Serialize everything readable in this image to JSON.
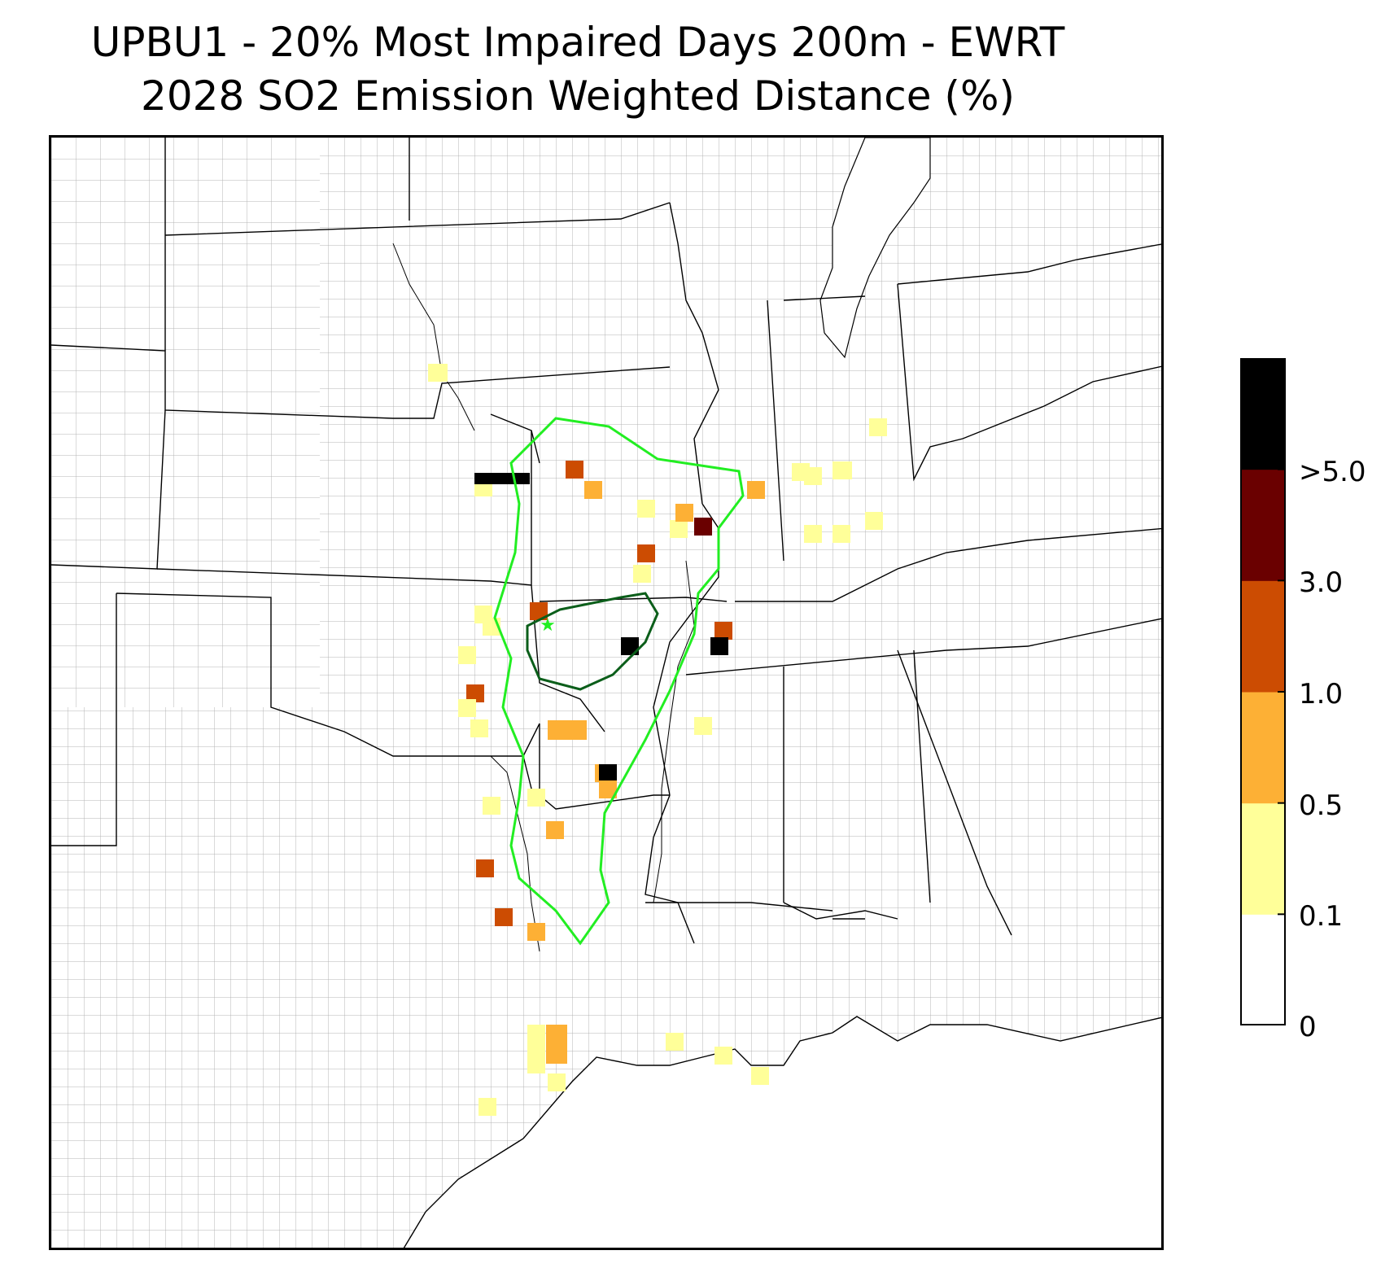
{
  "title": {
    "line1": "UPBU1 - 20% Most Impaired Days 200m - EWRT",
    "line2": "2028 SO2 Emission Weighted Distance (%)"
  },
  "map": {
    "region": "Central and South-Central United States with county boundaries",
    "class_I_area_marker": "green-star",
    "contours": [
      {
        "name": "outer-contour",
        "color": "#22ee22"
      },
      {
        "name": "inner-contour",
        "color": "#0b5e1a"
      }
    ]
  },
  "colorbar": {
    "bins": [
      {
        "range": "0-0.1",
        "color": "#ffffff"
      },
      {
        "range": "0.1-0.5",
        "color": "#ffff99"
      },
      {
        "range": "0.5-1.0",
        "color": "#fdb035"
      },
      {
        "range": "1.0-3.0",
        "color": "#cc4c02"
      },
      {
        "range": "3.0-5.0",
        "color": "#6a0000"
      },
      {
        "range": ">5.0",
        "color": "#000000"
      }
    ],
    "tick_labels": [
      "0",
      "0.1",
      "0.5",
      "1.0",
      "3.0",
      ">5.0"
    ]
  },
  "cells": [
    {
      "name": "cell-se-nebraska",
      "bin": 1
    },
    {
      "name": "cell-nw-missouri-1",
      "bin": 3
    },
    {
      "name": "cell-nw-missouri-2",
      "bin": 2
    },
    {
      "name": "cell-ne-kansas",
      "bin": 1
    },
    {
      "name": "cell-ne-missouri",
      "bin": 5
    },
    {
      "name": "cell-central-illinois-1",
      "bin": 1
    },
    {
      "name": "cell-central-illinois-2",
      "bin": 3
    },
    {
      "name": "cell-central-illinois-3",
      "bin": 4
    },
    {
      "name": "cell-central-illinois-4",
      "bin": 1
    },
    {
      "name": "cell-east-illinois",
      "bin": 2
    },
    {
      "name": "cell-indiana-west",
      "bin": 2
    },
    {
      "name": "cell-indiana-1",
      "bin": 1
    },
    {
      "name": "cell-indiana-2",
      "bin": 1
    },
    {
      "name": "cell-indiana-3",
      "bin": 1
    },
    {
      "name": "cell-indiana-4",
      "bin": 1
    },
    {
      "name": "cell-ohio-river-1",
      "bin": 1
    },
    {
      "name": "cell-ohio-river-2",
      "bin": 1
    },
    {
      "name": "cell-ohio-river-3",
      "bin": 1
    },
    {
      "name": "cell-se-illinois",
      "bin": 1
    },
    {
      "name": "cell-se-missouri",
      "bin": 3
    },
    {
      "name": "cell-central-missouri",
      "bin": 3
    },
    {
      "name": "cell-kansas-1",
      "bin": 1
    },
    {
      "name": "cell-kansas-2",
      "bin": 1
    },
    {
      "name": "cell-se-kansas-1",
      "bin": 1
    },
    {
      "name": "cell-se-kansas-2",
      "bin": 3
    },
    {
      "name": "cell-se-kansas-3",
      "bin": 1
    },
    {
      "name": "cell-sw-missouri",
      "bin": 1
    },
    {
      "name": "cell-s-missouri-1",
      "bin": 2
    },
    {
      "name": "cell-s-missouri-2",
      "bin": 2
    },
    {
      "name": "cell-s-missouri-3",
      "bin": 5
    },
    {
      "name": "cell-s-missouri-4",
      "bin": 5
    },
    {
      "name": "cell-ne-arkansas-1",
      "bin": 5
    },
    {
      "name": "cell-ne-arkansas-2",
      "bin": 2
    },
    {
      "name": "cell-nw-arkansas",
      "bin": 1
    },
    {
      "name": "cell-w-arkansas",
      "bin": 2
    },
    {
      "name": "cell-se-oklahoma",
      "bin": 3
    },
    {
      "name": "cell-ne-texas-1",
      "bin": 3
    },
    {
      "name": "cell-ne-texas-2",
      "bin": 2
    },
    {
      "name": "cell-ne-oklahoma",
      "bin": 1
    },
    {
      "name": "cell-w-tennessee",
      "bin": 1
    },
    {
      "name": "cell-louisiana-1",
      "bin": 1
    },
    {
      "name": "cell-louisiana-2",
      "bin": 1
    },
    {
      "name": "cell-louisiana-3",
      "bin": 1
    },
    {
      "name": "cell-se-texas-1",
      "bin": 2
    },
    {
      "name": "cell-se-texas-2",
      "bin": 1
    },
    {
      "name": "cell-se-texas-3",
      "bin": 1
    },
    {
      "name": "cell-s-texas",
      "bin": 1
    }
  ]
}
